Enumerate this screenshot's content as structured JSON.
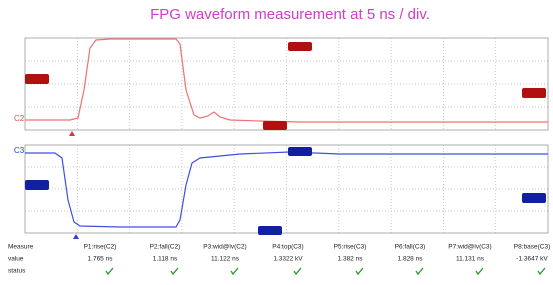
{
  "title": "FPG waveform measurement at 5 ns / div.",
  "channels": [
    "C2",
    "C3"
  ],
  "measurements": {
    "header": "Measure",
    "columns": [
      "P1:rise(C2)",
      "P2:fall(C2)",
      "P3:wid@lv(C2)",
      "P4:top(C3)",
      "P5:rise(C3)",
      "P6:fall(C3)",
      "P7:wid@lv(C3)",
      "P8:base(C3)"
    ],
    "rows": [
      {
        "label": "value",
        "cells": [
          "1.765 ns",
          "1.118 ns",
          "11.122 ns",
          "1.3322 kV",
          "1.382 ns",
          "1.828 ns",
          "11.131 ns",
          "-1.3647 kV"
        ]
      },
      {
        "label": "status"
      }
    ]
  }
}
